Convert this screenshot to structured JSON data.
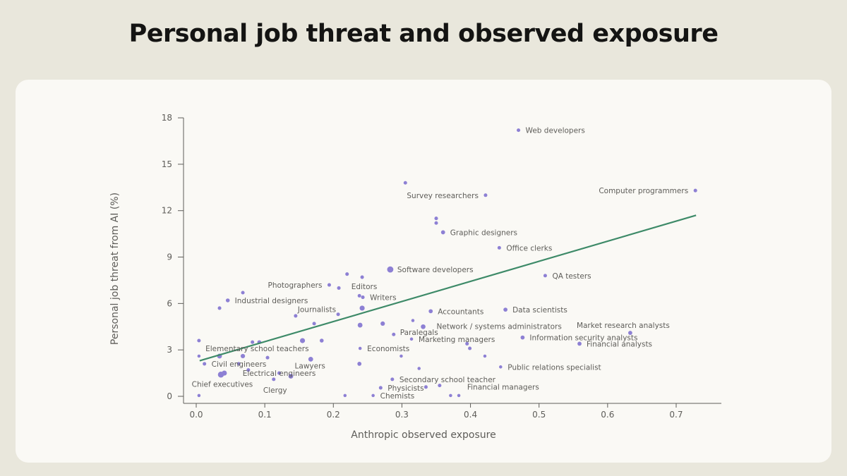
{
  "title": "Personal job threat and observed exposure",
  "chart_data": {
    "type": "scatter",
    "title": "Personal job threat and observed exposure",
    "xlabel": "Anthropic observed exposure",
    "ylabel": "Personal job threat from AI (%)",
    "xlim": [
      0,
      0.76
    ],
    "ylim": [
      0,
      18
    ],
    "xticks": [
      "0.0",
      "0.1",
      "0.2",
      "0.3",
      "0.4",
      "0.5",
      "0.6",
      "0.7"
    ],
    "yticks": [
      "0",
      "3",
      "6",
      "9",
      "12",
      "15",
      "18"
    ],
    "grid": false,
    "colors": {
      "points": "#8d80d4",
      "trendline": "#3d8a68",
      "axis": "#5e5d59"
    },
    "trendline": {
      "x": [
        0.005,
        0.729
      ],
      "y": [
        2.3,
        11.7
      ]
    },
    "points": [
      {
        "x": 0.47,
        "y": 17.2,
        "size": 1,
        "label": "Web developers"
      },
      {
        "x": 0.728,
        "y": 13.3,
        "size": 1,
        "label": "Computer programmers"
      },
      {
        "x": 0.305,
        "y": 13.8,
        "size": 1
      },
      {
        "x": 0.422,
        "y": 13.0,
        "size": 1,
        "label": "Survey researchers"
      },
      {
        "x": 0.35,
        "y": 11.5,
        "size": 1
      },
      {
        "x": 0.35,
        "y": 11.2,
        "size": 1
      },
      {
        "x": 0.36,
        "y": 10.6,
        "size": 1.3,
        "label": "Graphic designers"
      },
      {
        "x": 0.442,
        "y": 9.6,
        "size": 1,
        "label": "Office clerks"
      },
      {
        "x": 0.283,
        "y": 8.2,
        "size": 3,
        "label": "Software developers"
      },
      {
        "x": 0.22,
        "y": 7.9,
        "size": 1
      },
      {
        "x": 0.242,
        "y": 7.7,
        "size": 1,
        "label": "Editors"
      },
      {
        "x": 0.509,
        "y": 7.8,
        "size": 1,
        "label": "QA testers"
      },
      {
        "x": 0.194,
        "y": 7.2,
        "size": 1,
        "label": "Photographers"
      },
      {
        "x": 0.208,
        "y": 7.0,
        "size": 1
      },
      {
        "x": 0.068,
        "y": 6.7,
        "size": 1
      },
      {
        "x": 0.238,
        "y": 6.5,
        "size": 1
      },
      {
        "x": 0.243,
        "y": 6.4,
        "size": 1,
        "label": "Writers"
      },
      {
        "x": 0.046,
        "y": 6.2,
        "size": 1.2,
        "label": "Industrial designers"
      },
      {
        "x": 0.034,
        "y": 5.7,
        "size": 1
      },
      {
        "x": 0.207,
        "y": 5.3,
        "size": 1,
        "label": "Journalists"
      },
      {
        "x": 0.242,
        "y": 5.7,
        "size": 2
      },
      {
        "x": 0.145,
        "y": 5.2,
        "size": 1
      },
      {
        "x": 0.342,
        "y": 5.5,
        "size": 1.3,
        "label": "Accountants"
      },
      {
        "x": 0.451,
        "y": 5.6,
        "size": 1.3,
        "label": "Data scientists"
      },
      {
        "x": 0.316,
        "y": 4.9,
        "size": 0.8
      },
      {
        "x": 0.172,
        "y": 4.7,
        "size": 1
      },
      {
        "x": 0.239,
        "y": 4.6,
        "size": 1.8
      },
      {
        "x": 0.272,
        "y": 4.7,
        "size": 1.5
      },
      {
        "x": 0.331,
        "y": 4.5,
        "size": 1.7,
        "label": "Network / systems administrators"
      },
      {
        "x": 0.288,
        "y": 4.0,
        "size": 1,
        "label": "Paralegals"
      },
      {
        "x": 0.314,
        "y": 3.7,
        "size": 0.8,
        "label": "Marketing managers"
      },
      {
        "x": 0.633,
        "y": 4.1,
        "size": 1.3,
        "label": "Market research analysts"
      },
      {
        "x": 0.476,
        "y": 3.8,
        "size": 1.3,
        "label": "Information security analysts"
      },
      {
        "x": 0.559,
        "y": 3.4,
        "size": 1.3,
        "label": "Financial analysts"
      },
      {
        "x": 0.395,
        "y": 3.4,
        "size": 1
      },
      {
        "x": 0.399,
        "y": 3.1,
        "size": 1
      },
      {
        "x": 0.004,
        "y": 3.6,
        "size": 1
      },
      {
        "x": 0.082,
        "y": 3.5,
        "size": 1
      },
      {
        "x": 0.092,
        "y": 3.5,
        "size": 1.2,
        "label": "Elementary school teachers"
      },
      {
        "x": 0.155,
        "y": 3.6,
        "size": 2
      },
      {
        "x": 0.183,
        "y": 3.6,
        "size": 1.2
      },
      {
        "x": 0.239,
        "y": 3.1,
        "size": 0.8,
        "label": "Economists"
      },
      {
        "x": 0.299,
        "y": 2.6,
        "size": 0.8
      },
      {
        "x": 0.421,
        "y": 2.6,
        "size": 0.8
      },
      {
        "x": 0.004,
        "y": 2.6,
        "size": 0.8
      },
      {
        "x": 0.034,
        "y": 2.6,
        "size": 1.8
      },
      {
        "x": 0.068,
        "y": 2.6,
        "size": 1.5
      },
      {
        "x": 0.104,
        "y": 2.5,
        "size": 1
      },
      {
        "x": 0.012,
        "y": 2.1,
        "size": 1,
        "label": "Civil engineers"
      },
      {
        "x": 0.062,
        "y": 2.1,
        "size": 1
      },
      {
        "x": 0.167,
        "y": 2.4,
        "size": 1.8,
        "label": "Lawyers"
      },
      {
        "x": 0.238,
        "y": 2.1,
        "size": 1.3
      },
      {
        "x": 0.325,
        "y": 1.8,
        "size": 0.8
      },
      {
        "x": 0.444,
        "y": 1.9,
        "size": 0.8,
        "label": "Public relations specialist"
      },
      {
        "x": 0.041,
        "y": 1.5,
        "size": 2
      },
      {
        "x": 0.036,
        "y": 1.4,
        "size": 2.8,
        "label": "Chief executives"
      },
      {
        "x": 0.076,
        "y": 1.7,
        "size": 1
      },
      {
        "x": 0.121,
        "y": 1.5,
        "size": 1,
        "label": "Electrical engineers"
      },
      {
        "x": 0.113,
        "y": 1.1,
        "size": 1,
        "label": "Clergy"
      },
      {
        "x": 0.138,
        "y": 1.3,
        "size": 1.8
      },
      {
        "x": 0.286,
        "y": 1.1,
        "size": 1,
        "label": "Secondary school teacher"
      },
      {
        "x": 0.269,
        "y": 0.55,
        "size": 1,
        "label": "Physicists"
      },
      {
        "x": 0.335,
        "y": 0.6,
        "size": 1
      },
      {
        "x": 0.355,
        "y": 0.7,
        "size": 1,
        "label": "Financial managers"
      },
      {
        "x": 0.258,
        "y": 0.05,
        "size": 0.8,
        "label": "Chemists"
      },
      {
        "x": 0.004,
        "y": 0.05,
        "size": 0.8
      },
      {
        "x": 0.217,
        "y": 0.05,
        "size": 0.8
      },
      {
        "x": 0.371,
        "y": 0.05,
        "size": 0.8
      },
      {
        "x": 0.383,
        "y": 0.05,
        "size": 0.8
      }
    ]
  }
}
